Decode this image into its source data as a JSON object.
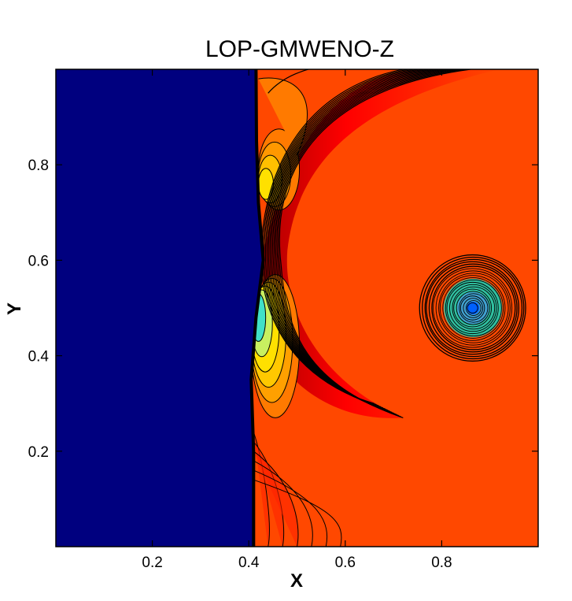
{
  "chart_data": {
    "type": "contour",
    "title": "LOP-GMWENO-Z",
    "xlabel": "X",
    "ylabel": "Y",
    "xlim": [
      0,
      1
    ],
    "ylim": [
      0,
      1
    ],
    "xticks": [
      0.2,
      0.4,
      0.6,
      0.8
    ],
    "yticks": [
      0.2,
      0.4,
      0.6,
      0.8
    ],
    "xtick_labels": [
      "0.2",
      "0.4",
      "0.6",
      "0.8"
    ],
    "ytick_labels": [
      "0.2",
      "0.4",
      "0.6",
      "0.8"
    ],
    "grid": false,
    "legend": "none",
    "features": {
      "shock_front_x": 0.41,
      "vortex_center": [
        0.865,
        0.5
      ],
      "vortex_radius": 0.11,
      "bow_wave_circle_center": [
        0.88,
        0.48
      ],
      "bow_wave_circle_radius": 0.55
    },
    "colors": {
      "pre_shock": "#00007f",
      "post_shock": "#ff4800",
      "high": "#ff0000",
      "mid": "#ff7a00",
      "yellow": "#ffe000",
      "cyan": "#40e0c8",
      "vortex_core": "#0060ff",
      "contour_line": "#000000"
    }
  }
}
